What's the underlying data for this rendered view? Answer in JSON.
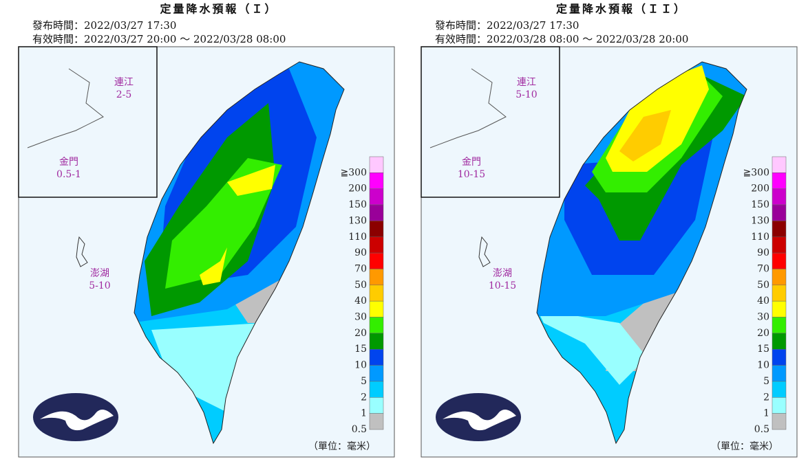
{
  "panels": [
    {
      "title": "定量降水預報（Ｉ）",
      "issued": "發布時間：2022/03/27 17:30",
      "valid": "有效時間：2022/03/27 20:00 ～ 2022/03/28 08:00",
      "regions": [
        {
          "name": "連江",
          "value": "2-5"
        },
        {
          "name": "金門",
          "value": "0.5-1"
        },
        {
          "name": "澎湖",
          "value": "5-10"
        }
      ]
    },
    {
      "title": "定量降水預報（ＩＩ）",
      "issued": "發布時間：2022/03/27 17:30",
      "valid": "有效時間：2022/03/28 08:00 ～ 2022/03/28 20:00",
      "regions": [
        {
          "name": "連江",
          "value": "5-10"
        },
        {
          "name": "金門",
          "value": "10-15"
        },
        {
          "name": "澎湖",
          "value": "10-15"
        }
      ]
    }
  ],
  "legend": {
    "labels": [
      "≧300",
      "200",
      "150",
      "130",
      "110",
      "90",
      "70",
      "50",
      "40",
      "30",
      "20",
      "15",
      "10",
      "5",
      "2",
      "1",
      "0.5"
    ],
    "colors": [
      "#ffc8ff",
      "#ff00ff",
      "#cc00cc",
      "#990099",
      "#8b0000",
      "#cc0000",
      "#ff0000",
      "#ff9900",
      "#ffcc00",
      "#ffff00",
      "#33ee00",
      "#009900",
      "#0044ee",
      "#0099ff",
      "#00ccff",
      "#99ffff",
      "#c0c0c0"
    ],
    "unit": "（單位：毫米）"
  }
}
